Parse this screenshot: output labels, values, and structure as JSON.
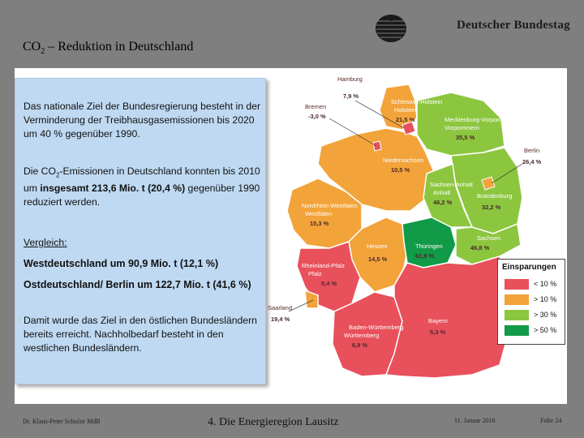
{
  "header": {
    "org": "Deutscher Bundestag",
    "title_prefix": "CO",
    "title_sub": "2",
    "title_rest": " – Reduktion in Deutschland"
  },
  "infobox": {
    "p1": "Das nationale Ziel der Bundesregierung besteht in der Verminderung der Treibhausgasemissionen bis 2020 um 40 % gegenüber 1990.",
    "p2a": "Die CO",
    "p2sub": "2",
    "p2b": "-Emissionen in Deutschland konnten bis 2010 um ",
    "p2bold": "insgesamt 213,6 Mio. t (20,4 %)",
    "p2c": " gegenüber 1990 reduziert werden.",
    "p3": "Vergleich:",
    "p4": "Westdeutschland um 90,9 Mio. t   (12,1 %)",
    "p5": "Ostdeutschland/ Berlin um 122,7 Mio. t  (41,6 %)",
    "p6": "Damit wurde das Ziel in den östlichen Bundesländern bereits erreicht. Nachholbedarf besteht in den westlichen Bundesländern."
  },
  "map": {
    "colors": {
      "red": "#e8505b",
      "orange": "#f2a33a",
      "lightgreen": "#8cc63f",
      "darkgreen": "#119a48"
    },
    "states": [
      {
        "name": "Hamburg",
        "value": "7,9 %"
      },
      {
        "name": "Bremen",
        "value": "-3,0 %"
      },
      {
        "name": "Schleswig-Holstein",
        "value": "21,5 %"
      },
      {
        "name": "Mecklenburg-Vorpommern",
        "value": "35,5 %"
      },
      {
        "name": "Berlin",
        "value": "26,4 %"
      },
      {
        "name": "Niedersachsen",
        "value": "10,5 %"
      },
      {
        "name": "Sachsen-Anhalt",
        "value": "46,2 %"
      },
      {
        "name": "Brandenburg",
        "value": "32,2 %"
      },
      {
        "name": "Nordrhein-Westfalen",
        "value": "15,3 %"
      },
      {
        "name": "Thüringen",
        "value": "61,9 %"
      },
      {
        "name": "Sachsen",
        "value": "46,8 %"
      },
      {
        "name": "Hessen",
        "value": "14,5 %"
      },
      {
        "name": "Rheinland-Pfalz",
        "value": "0,4 %"
      },
      {
        "name": "Saarland",
        "value": "19,4 %"
      },
      {
        "name": "Baden-Württemberg",
        "value": "6,9 %"
      },
      {
        "name": "Bayern",
        "value": "5,3 %"
      }
    ]
  },
  "legend": {
    "title": "Einsparungen",
    "items": [
      {
        "label": "< 10 %",
        "color": "#e8505b"
      },
      {
        "label": "> 10 %",
        "color": "#f2a33a"
      },
      {
        "label": "> 30 %",
        "color": "#8cc63f"
      },
      {
        "label": "> 50 %",
        "color": "#119a48"
      }
    ]
  },
  "footer": {
    "author": "Dr. Klaus-Peter Schulze MdB",
    "section": "4. Die Energieregion Lausitz",
    "date": "11. Januar 2016",
    "slide": "Folie 24"
  }
}
